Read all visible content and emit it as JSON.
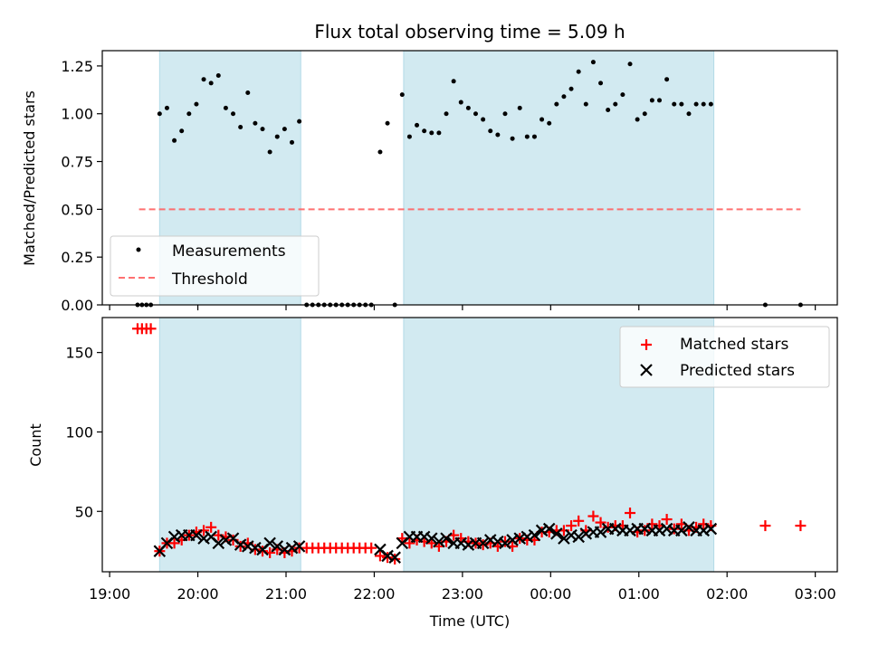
{
  "chart_data": {
    "type": "scatter",
    "title": "Flux total observing time = 5.09 h",
    "xlabel": "Time (UTC)",
    "x_ticks": [
      "19:00",
      "20:00",
      "21:00",
      "22:00",
      "23:00",
      "00:00",
      "01:00",
      "02:00",
      "03:00"
    ],
    "night_bands": [
      [
        "19:34",
        "21:10"
      ],
      [
        "22:20",
        "01:51"
      ]
    ],
    "band_color": "#add8e6",
    "top": {
      "ylabel": "Matched/Predicted stars",
      "ylim": [
        0,
        1.33
      ],
      "yticks": [
        "0.00",
        "0.25",
        "0.50",
        "0.75",
        "1.00",
        "1.25"
      ],
      "legend": {
        "position": "lower-left",
        "items": [
          "Measurements",
          "Threshold"
        ]
      },
      "threshold": {
        "name": "Threshold",
        "value": 0.5,
        "x_range": [
          "19:20",
          "02:50"
        ],
        "color": "#ff6060"
      },
      "measurements": {
        "name": "Measurements",
        "color": "#000000",
        "points": [
          [
            "19:19",
            0
          ],
          [
            "19:22",
            0
          ],
          [
            "19:25",
            0
          ],
          [
            "19:28",
            0
          ],
          [
            "19:34",
            1.0
          ],
          [
            "19:39",
            1.03
          ],
          [
            "19:44",
            0.86
          ],
          [
            "19:49",
            0.91
          ],
          [
            "19:54",
            1.0
          ],
          [
            "19:59",
            1.05
          ],
          [
            "20:04",
            1.18
          ],
          [
            "20:09",
            1.16
          ],
          [
            "20:14",
            1.2
          ],
          [
            "20:19",
            1.03
          ],
          [
            "20:24",
            1.0
          ],
          [
            "20:29",
            0.93
          ],
          [
            "20:34",
            1.11
          ],
          [
            "20:39",
            0.95
          ],
          [
            "20:44",
            0.92
          ],
          [
            "20:49",
            0.8
          ],
          [
            "20:54",
            0.88
          ],
          [
            "20:59",
            0.92
          ],
          [
            "21:04",
            0.85
          ],
          [
            "21:09",
            0.96
          ],
          [
            "21:14",
            0
          ],
          [
            "21:18",
            0
          ],
          [
            "21:22",
            0
          ],
          [
            "21:26",
            0
          ],
          [
            "21:30",
            0
          ],
          [
            "21:34",
            0
          ],
          [
            "21:38",
            0
          ],
          [
            "21:42",
            0
          ],
          [
            "21:46",
            0
          ],
          [
            "21:50",
            0
          ],
          [
            "21:54",
            0
          ],
          [
            "21:58",
            0
          ],
          [
            "22:04",
            0.8
          ],
          [
            "22:09",
            0.95
          ],
          [
            "22:14",
            0
          ],
          [
            "22:19",
            1.1
          ],
          [
            "22:24",
            0.88
          ],
          [
            "22:29",
            0.94
          ],
          [
            "22:34",
            0.91
          ],
          [
            "22:39",
            0.9
          ],
          [
            "22:44",
            0.9
          ],
          [
            "22:49",
            1.0
          ],
          [
            "22:54",
            1.17
          ],
          [
            "22:59",
            1.06
          ],
          [
            "23:04",
            1.03
          ],
          [
            "23:09",
            1.0
          ],
          [
            "23:14",
            0.97
          ],
          [
            "23:19",
            0.91
          ],
          [
            "23:24",
            0.89
          ],
          [
            "23:29",
            1.0
          ],
          [
            "23:34",
            0.87
          ],
          [
            "23:39",
            1.03
          ],
          [
            "23:44",
            0.88
          ],
          [
            "23:49",
            0.88
          ],
          [
            "23:54",
            0.97
          ],
          [
            "23:59",
            0.95
          ],
          [
            "00:04",
            1.05
          ],
          [
            "00:09",
            1.09
          ],
          [
            "00:14",
            1.13
          ],
          [
            "00:19",
            1.22
          ],
          [
            "00:24",
            1.05
          ],
          [
            "00:29",
            1.27
          ],
          [
            "00:34",
            1.16
          ],
          [
            "00:39",
            1.02
          ],
          [
            "00:44",
            1.05
          ],
          [
            "00:49",
            1.1
          ],
          [
            "00:54",
            1.26
          ],
          [
            "00:59",
            0.97
          ],
          [
            "01:04",
            1.0
          ],
          [
            "01:09",
            1.07
          ],
          [
            "01:14",
            1.07
          ],
          [
            "01:19",
            1.18
          ],
          [
            "01:24",
            1.05
          ],
          [
            "01:29",
            1.05
          ],
          [
            "01:34",
            1.0
          ],
          [
            "01:39",
            1.05
          ],
          [
            "01:44",
            1.05
          ],
          [
            "01:49",
            1.05
          ],
          [
            "02:26",
            0
          ],
          [
            "02:50",
            0
          ]
        ]
      }
    },
    "bottom": {
      "ylabel": "Count",
      "ylim": [
        12,
        172
      ],
      "yticks": [
        "50",
        "100",
        "150"
      ],
      "legend": {
        "position": "top-right",
        "items": [
          "Matched stars",
          "Predicted stars"
        ]
      },
      "matched": {
        "name": "Matched stars",
        "color": "#ff0000",
        "points": [
          [
            "19:19",
            165
          ],
          [
            "19:22",
            165
          ],
          [
            "19:25",
            165
          ],
          [
            "19:28",
            165
          ],
          [
            "19:34",
            25
          ],
          [
            "19:39",
            30
          ],
          [
            "19:44",
            30
          ],
          [
            "19:49",
            32
          ],
          [
            "19:54",
            35
          ],
          [
            "19:59",
            37
          ],
          [
            "20:04",
            38
          ],
          [
            "20:09",
            40
          ],
          [
            "20:14",
            35
          ],
          [
            "20:19",
            34
          ],
          [
            "20:24",
            32
          ],
          [
            "20:29",
            28
          ],
          [
            "20:34",
            30
          ],
          [
            "20:39",
            26
          ],
          [
            "20:44",
            25
          ],
          [
            "20:49",
            24
          ],
          [
            "20:54",
            26
          ],
          [
            "20:59",
            24
          ],
          [
            "21:04",
            25
          ],
          [
            "21:09",
            27
          ],
          [
            "21:14",
            27
          ],
          [
            "21:18",
            27
          ],
          [
            "21:22",
            27
          ],
          [
            "21:26",
            27
          ],
          [
            "21:30",
            27
          ],
          [
            "21:34",
            27
          ],
          [
            "21:38",
            27
          ],
          [
            "21:42",
            27
          ],
          [
            "21:46",
            27
          ],
          [
            "21:50",
            27
          ],
          [
            "21:54",
            27
          ],
          [
            "21:58",
            27
          ],
          [
            "22:04",
            22
          ],
          [
            "22:09",
            21
          ],
          [
            "22:14",
            20
          ],
          [
            "22:19",
            33
          ],
          [
            "22:24",
            30
          ],
          [
            "22:29",
            32
          ],
          [
            "22:34",
            31
          ],
          [
            "22:39",
            30
          ],
          [
            "22:44",
            28
          ],
          [
            "22:49",
            31
          ],
          [
            "22:54",
            35
          ],
          [
            "22:59",
            33
          ],
          [
            "23:04",
            31
          ],
          [
            "23:09",
            30
          ],
          [
            "23:14",
            29
          ],
          [
            "23:19",
            30
          ],
          [
            "23:24",
            28
          ],
          [
            "23:29",
            31
          ],
          [
            "23:34",
            28
          ],
          [
            "23:39",
            33
          ],
          [
            "23:44",
            32
          ],
          [
            "23:49",
            32
          ],
          [
            "23:54",
            37
          ],
          [
            "23:59",
            37
          ],
          [
            "00:04",
            38
          ],
          [
            "00:09",
            38
          ],
          [
            "00:14",
            41
          ],
          [
            "00:19",
            44
          ],
          [
            "00:24",
            38
          ],
          [
            "00:29",
            47
          ],
          [
            "00:34",
            43
          ],
          [
            "00:39",
            40
          ],
          [
            "00:44",
            41
          ],
          [
            "00:49",
            41
          ],
          [
            "00:54",
            49
          ],
          [
            "00:59",
            37
          ],
          [
            "01:04",
            38
          ],
          [
            "01:09",
            42
          ],
          [
            "01:14",
            41
          ],
          [
            "01:19",
            45
          ],
          [
            "01:24",
            39
          ],
          [
            "01:29",
            42
          ],
          [
            "01:34",
            38
          ],
          [
            "01:39",
            40
          ],
          [
            "01:44",
            42
          ],
          [
            "01:49",
            41
          ],
          [
            "02:26",
            41
          ],
          [
            "02:50",
            41
          ]
        ]
      },
      "predicted": {
        "name": "Predicted stars",
        "color": "#000000",
        "points": [
          [
            "19:34",
            25
          ],
          [
            "19:39",
            30
          ],
          [
            "19:44",
            34
          ],
          [
            "19:49",
            35
          ],
          [
            "19:54",
            35
          ],
          [
            "19:59",
            35
          ],
          [
            "20:04",
            33
          ],
          [
            "20:09",
            34
          ],
          [
            "20:14",
            30
          ],
          [
            "20:19",
            32
          ],
          [
            "20:24",
            33
          ],
          [
            "20:29",
            29
          ],
          [
            "20:34",
            28
          ],
          [
            "20:39",
            27
          ],
          [
            "20:44",
            26
          ],
          [
            "20:49",
            30
          ],
          [
            "20:54",
            28
          ],
          [
            "20:59",
            26
          ],
          [
            "21:04",
            27
          ],
          [
            "21:09",
            28
          ],
          [
            "22:04",
            26
          ],
          [
            "22:09",
            22
          ],
          [
            "22:14",
            21
          ],
          [
            "22:19",
            30
          ],
          [
            "22:24",
            34
          ],
          [
            "22:29",
            34
          ],
          [
            "22:34",
            34
          ],
          [
            "22:39",
            33
          ],
          [
            "22:44",
            31
          ],
          [
            "22:49",
            33
          ],
          [
            "22:54",
            30
          ],
          [
            "22:59",
            30
          ],
          [
            "23:04",
            29
          ],
          [
            "23:09",
            30
          ],
          [
            "23:14",
            30
          ],
          [
            "23:19",
            32
          ],
          [
            "23:24",
            31
          ],
          [
            "23:29",
            30
          ],
          [
            "23:34",
            32
          ],
          [
            "23:39",
            33
          ],
          [
            "23:44",
            34
          ],
          [
            "23:49",
            35
          ],
          [
            "23:54",
            38
          ],
          [
            "23:59",
            39
          ],
          [
            "00:04",
            36
          ],
          [
            "00:09",
            33
          ],
          [
            "00:14",
            35
          ],
          [
            "00:19",
            34
          ],
          [
            "00:24",
            36
          ],
          [
            "00:29",
            37
          ],
          [
            "00:34",
            37
          ],
          [
            "00:39",
            39
          ],
          [
            "00:44",
            39
          ],
          [
            "00:49",
            38
          ],
          [
            "00:54",
            38
          ],
          [
            "00:59",
            39
          ],
          [
            "01:04",
            39
          ],
          [
            "01:09",
            38
          ],
          [
            "01:14",
            38
          ],
          [
            "01:19",
            39
          ],
          [
            "01:24",
            38
          ],
          [
            "01:29",
            38
          ],
          [
            "01:34",
            40
          ],
          [
            "01:39",
            38
          ],
          [
            "01:44",
            38
          ],
          [
            "01:49",
            39
          ]
        ]
      }
    }
  }
}
